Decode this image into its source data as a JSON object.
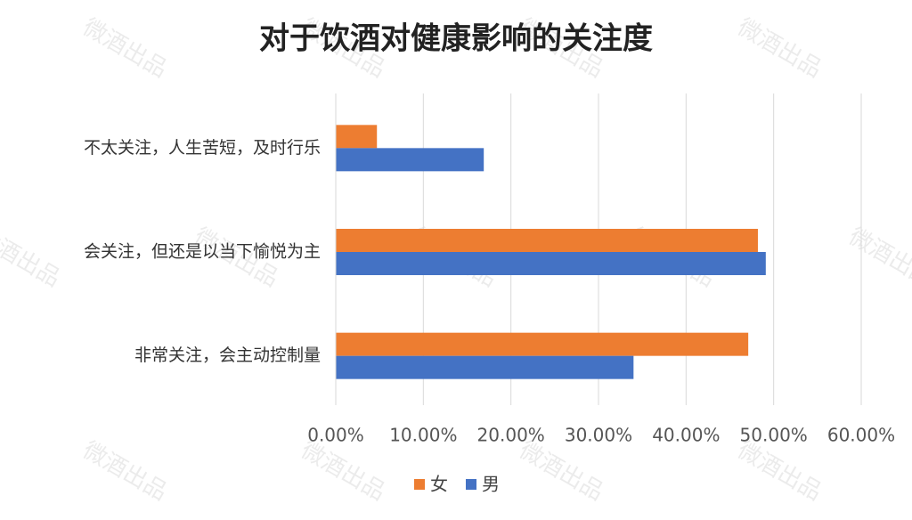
{
  "chart_data": {
    "type": "bar",
    "orientation": "horizontal",
    "title": "对于饮酒对健康影响的关注度",
    "categories": [
      "不太关注，人生苦短，及时行乐",
      "会关注，但还是以当下愉悦为主",
      "非常关注，会主动控制量"
    ],
    "series": [
      {
        "name": "女",
        "color": "#ed7d31",
        "values": [
          4.7,
          48.2,
          47.1
        ]
      },
      {
        "name": "男",
        "color": "#4472c4",
        "values": [
          16.9,
          49.1,
          34.0
        ]
      }
    ],
    "xlim": [
      0,
      60
    ],
    "xticks": [
      {
        "value": 0,
        "label": "0.00%"
      },
      {
        "value": 10,
        "label": "10.00%"
      },
      {
        "value": 20,
        "label": "20.00%"
      },
      {
        "value": 30,
        "label": "30.00%"
      },
      {
        "value": 40,
        "label": "40.00%"
      },
      {
        "value": 50,
        "label": "50.00%"
      },
      {
        "value": 60,
        "label": "60.00%"
      }
    ],
    "grid": true,
    "legend": "bottom",
    "watermark": "微酒出品"
  }
}
